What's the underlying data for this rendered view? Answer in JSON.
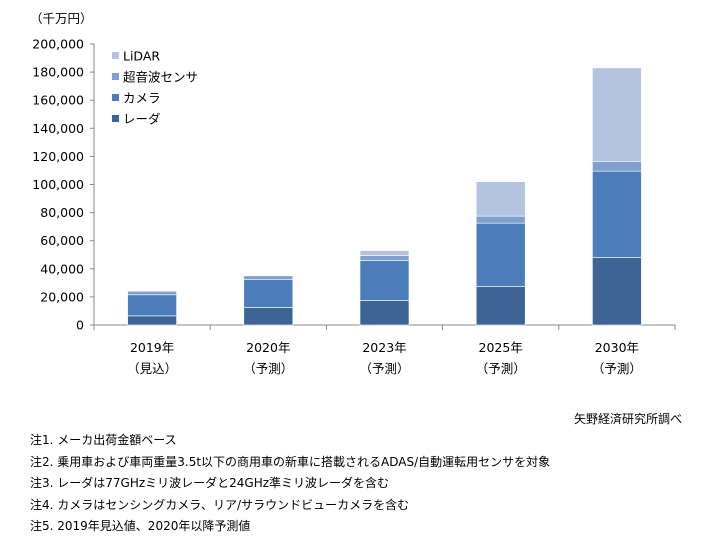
{
  "unit_label": "（千万円）",
  "source": "矢野経済研究所調べ",
  "notes": [
    "注1. メーカ出荷金額ベース",
    "注2. 乗用車および車両重量3.5t以下の商用車の新車に搭載されるADAS/自動運転用センサを対象",
    "注3. レーダは77GHzミリ波レーダと24GHz準ミリ波レーダを含む",
    "注4. カメラはセンシングカメラ、リア/サラウンドビューカメラを含む",
    "注5. 2019年見込値、2020年以降予測値"
  ],
  "colors": {
    "radar": "#3d6495",
    "camera": "#4a7dba",
    "ultrasonic": "#7f9fd0",
    "lidar": "#b4c4e0"
  },
  "chart_data": {
    "type": "bar",
    "stacked": true,
    "categories": [
      "2019年",
      "2020年",
      "2023年",
      "2025年",
      "2030年"
    ],
    "category_sublabels": [
      "（見込）",
      "（予測）",
      "（予測）",
      "（予測）",
      "（予測）"
    ],
    "series": [
      {
        "name": "レーダ",
        "values": [
          6500,
          12500,
          17500,
          27500,
          48000
        ]
      },
      {
        "name": "カメラ",
        "values": [
          15000,
          20000,
          28500,
          45000,
          61500
        ]
      },
      {
        "name": "超音波センサ",
        "values": [
          2500,
          2500,
          3500,
          5000,
          7000
        ]
      },
      {
        "name": "LiDAR",
        "values": [
          0,
          0,
          3500,
          24500,
          66500
        ]
      }
    ],
    "ylim": [
      0,
      200000
    ],
    "yticks": [
      "0",
      "20,000",
      "40,000",
      "60,000",
      "80,000",
      "100,000",
      "120,000",
      "140,000",
      "160,000",
      "180,000",
      "200,000"
    ],
    "legend_position": "top-left",
    "grid": false
  }
}
